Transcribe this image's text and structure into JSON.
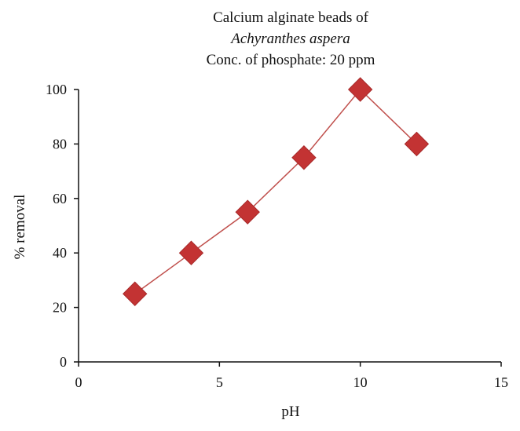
{
  "chart_data": {
    "type": "line",
    "title_lines": [
      "Calcium alginate beads of",
      "Achyranthes aspera",
      "Conc. of phosphate: 20 ppm"
    ],
    "xlabel": "pH",
    "ylabel": "% removal",
    "x_ticks": [
      "0",
      "5",
      "10",
      "15"
    ],
    "y_ticks": [
      "0",
      "20",
      "40",
      "60",
      "80",
      "100"
    ],
    "xlim": [
      0,
      15
    ],
    "ylim": [
      0,
      100
    ],
    "grid": false,
    "legend": "none",
    "series": [
      {
        "x": [
          2,
          4,
          6,
          8,
          10,
          12
        ],
        "y": [
          25,
          40,
          55,
          75,
          100,
          80
        ],
        "marker": "diamond",
        "marker_color": "#c33333",
        "line_color": "#c0504d"
      }
    ]
  }
}
